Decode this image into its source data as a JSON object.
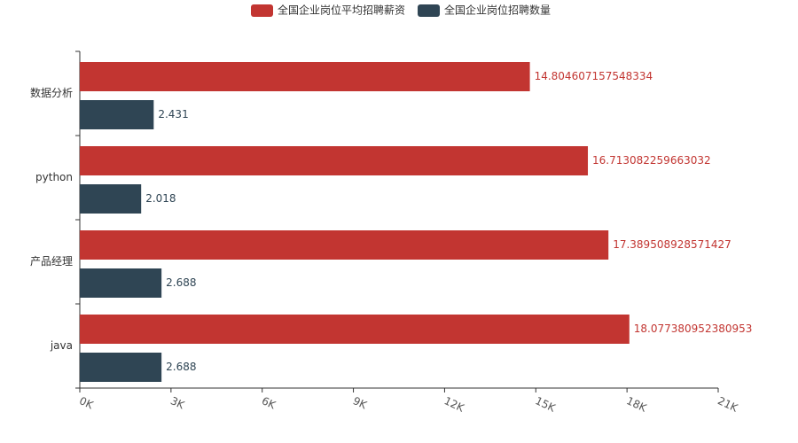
{
  "chart_data": {
    "type": "hbar",
    "categories": [
      "java",
      "产品经理",
      "python",
      "数据分析"
    ],
    "series": [
      {
        "name": "全国企业岗位平均招聘薪资",
        "color": "#c23531",
        "values": [
          18.077380952380953,
          17.389508928571427,
          16.713082259663032,
          14.804607157548334
        ]
      },
      {
        "name": "全国企业岗位招聘数量",
        "color": "#2f4554",
        "values": [
          2.688,
          2.688,
          2.018,
          2.431
        ]
      }
    ],
    "xlim": [
      0,
      21
    ],
    "xticks": [
      {
        "value": 0,
        "label": "0K"
      },
      {
        "value": 3,
        "label": "3K"
      },
      {
        "value": 6,
        "label": "6K"
      },
      {
        "value": 9,
        "label": "9K"
      },
      {
        "value": 12,
        "label": "12K"
      },
      {
        "value": 15,
        "label": "15K"
      },
      {
        "value": 18,
        "label": "18K"
      },
      {
        "value": 21,
        "label": "21K"
      }
    ],
    "legend_position": "top",
    "grid": false
  }
}
